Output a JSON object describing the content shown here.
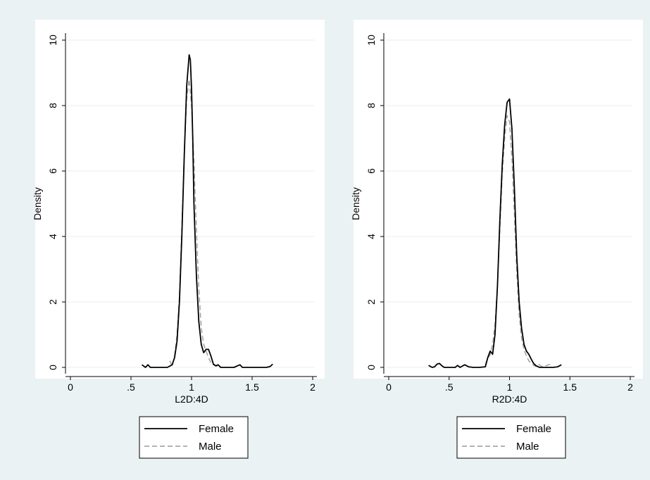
{
  "colors": {
    "outer_background": "#eaf2f3",
    "plot_background": "#ffffff",
    "grid": "#eaf2f3",
    "axis": "#000000",
    "female_line": "#000000",
    "male_line": "#9a9a9a"
  },
  "chart_data": [
    {
      "type": "line",
      "title": "",
      "xlabel": "L2D:4D",
      "ylabel": "Density",
      "xlim": [
        0,
        2
      ],
      "ylim": [
        0,
        10
      ],
      "xticks": [
        0,
        0.5,
        1,
        1.5,
        2
      ],
      "xtick_labels": [
        "0",
        ".5",
        "1",
        "1.5",
        "2"
      ],
      "yticks": [
        0,
        2,
        4,
        6,
        8,
        10
      ],
      "ytick_labels": [
        "0",
        "2",
        "4",
        "6",
        "8",
        "10"
      ],
      "grid": true,
      "legend": {
        "position": "bottom",
        "entries": [
          "Female",
          "Male"
        ]
      },
      "series": [
        {
          "name": "Female",
          "style": "solid",
          "x": [
            0.59,
            0.62,
            0.64,
            0.66,
            0.68,
            0.72,
            0.8,
            0.84,
            0.86,
            0.88,
            0.9,
            0.92,
            0.94,
            0.96,
            0.98,
            0.99,
            1.0,
            1.01,
            1.02,
            1.04,
            1.06,
            1.08,
            1.1,
            1.12,
            1.14,
            1.16,
            1.18,
            1.2,
            1.22,
            1.24,
            1.28,
            1.35,
            1.38,
            1.4,
            1.42,
            1.46,
            1.55,
            1.62,
            1.65,
            1.67
          ],
          "y": [
            0.08,
            0.0,
            0.08,
            0.0,
            0.0,
            0.0,
            0.0,
            0.08,
            0.3,
            0.8,
            2.0,
            4.0,
            6.5,
            8.6,
            9.55,
            9.4,
            8.5,
            7.0,
            5.0,
            2.8,
            1.4,
            0.7,
            0.45,
            0.55,
            0.55,
            0.35,
            0.1,
            0.05,
            0.08,
            0.0,
            0.0,
            0.0,
            0.05,
            0.08,
            0.0,
            0.0,
            0.0,
            0.0,
            0.03,
            0.1
          ]
        },
        {
          "name": "Male",
          "style": "dashed",
          "x": [
            0.82,
            0.84,
            0.86,
            0.88,
            0.9,
            0.92,
            0.94,
            0.96,
            0.98,
            1.0,
            1.02,
            1.04,
            1.06,
            1.08,
            1.1,
            1.12,
            1.14,
            1.16,
            1.18,
            1.2,
            1.22,
            1.24
          ],
          "y": [
            0.2,
            0.05,
            0.35,
            1.0,
            2.2,
            4.3,
            6.6,
            8.2,
            8.8,
            8.0,
            6.3,
            4.2,
            2.4,
            1.2,
            0.7,
            0.5,
            0.3,
            0.15,
            0.08,
            0.04,
            0.03,
            0.04
          ]
        }
      ]
    },
    {
      "type": "line",
      "title": "",
      "xlabel": "R2D:4D",
      "ylabel": "Density",
      "xlim": [
        0,
        2
      ],
      "ylim": [
        0,
        10
      ],
      "xticks": [
        0,
        0.5,
        1,
        1.5,
        2
      ],
      "xtick_labels": [
        "0",
        ".5",
        "1",
        "1.5",
        "2"
      ],
      "yticks": [
        0,
        2,
        4,
        6,
        8,
        10
      ],
      "ytick_labels": [
        "0",
        "2",
        "4",
        "6",
        "8",
        "10"
      ],
      "grid": true,
      "legend": {
        "position": "bottom",
        "entries": [
          "Female",
          "Male"
        ]
      },
      "series": [
        {
          "name": "Female",
          "style": "solid",
          "x": [
            0.33,
            0.36,
            0.38,
            0.4,
            0.42,
            0.44,
            0.46,
            0.5,
            0.55,
            0.57,
            0.59,
            0.61,
            0.63,
            0.66,
            0.7,
            0.75,
            0.8,
            0.82,
            0.84,
            0.86,
            0.88,
            0.9,
            0.92,
            0.94,
            0.96,
            0.98,
            1.0,
            1.02,
            1.04,
            1.06,
            1.08,
            1.1,
            1.12,
            1.14,
            1.16,
            1.18,
            1.2,
            1.22,
            1.25,
            1.3,
            1.36,
            1.4,
            1.43
          ],
          "y": [
            0.06,
            0.0,
            0.02,
            0.1,
            0.12,
            0.05,
            0.0,
            0.0,
            0.0,
            0.06,
            0.0,
            0.04,
            0.08,
            0.02,
            0.0,
            0.0,
            0.02,
            0.3,
            0.5,
            0.4,
            1.0,
            2.5,
            4.5,
            6.2,
            7.4,
            8.1,
            8.2,
            7.3,
            5.5,
            3.4,
            2.0,
            1.2,
            0.7,
            0.5,
            0.4,
            0.25,
            0.12,
            0.05,
            0.0,
            0.0,
            0.0,
            0.02,
            0.08
          ]
        },
        {
          "name": "Male",
          "style": "dashed",
          "x": [
            0.8,
            0.84,
            0.86,
            0.88,
            0.9,
            0.92,
            0.94,
            0.96,
            0.98,
            1.0,
            1.02,
            1.04,
            1.06,
            1.08,
            1.1,
            1.12,
            1.14,
            1.16,
            1.18,
            1.2,
            1.22,
            1.24,
            1.26,
            1.28,
            1.3,
            1.34
          ],
          "y": [
            0.1,
            0.4,
            0.7,
            1.3,
            2.5,
            4.2,
            5.9,
            7.0,
            7.7,
            7.5,
            6.4,
            4.7,
            2.9,
            1.6,
            0.9,
            0.55,
            0.35,
            0.2,
            0.12,
            0.06,
            0.03,
            0.1,
            0.04,
            0.02,
            0.05,
            0.1
          ]
        }
      ]
    }
  ]
}
